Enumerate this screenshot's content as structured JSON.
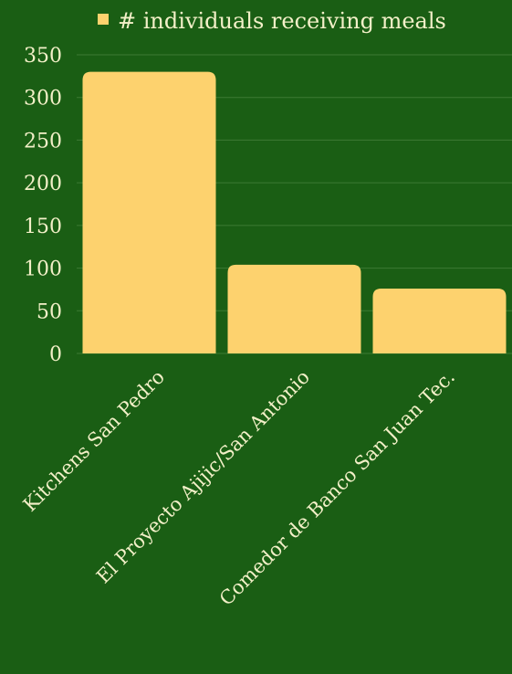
{
  "chart_data": {
    "type": "bar",
    "categories": [
      "Kitchens San Pedro",
      "El Proyecto Ajijic/San Antonio",
      "Comedor de Banco San Juan Tec."
    ],
    "series": [
      {
        "name": "# individuals receiving meals",
        "values": [
          330,
          104,
          76
        ]
      }
    ],
    "ylim": [
      0,
      350
    ],
    "yticks": [
      0,
      50,
      100,
      150,
      200,
      250,
      300,
      350
    ],
    "grid": true,
    "legend_position": "top",
    "colors": {
      "background": "#1a5e14",
      "bar": "#fdd26e",
      "text": "#f3f0c8",
      "grid": "#3d7a33"
    }
  }
}
